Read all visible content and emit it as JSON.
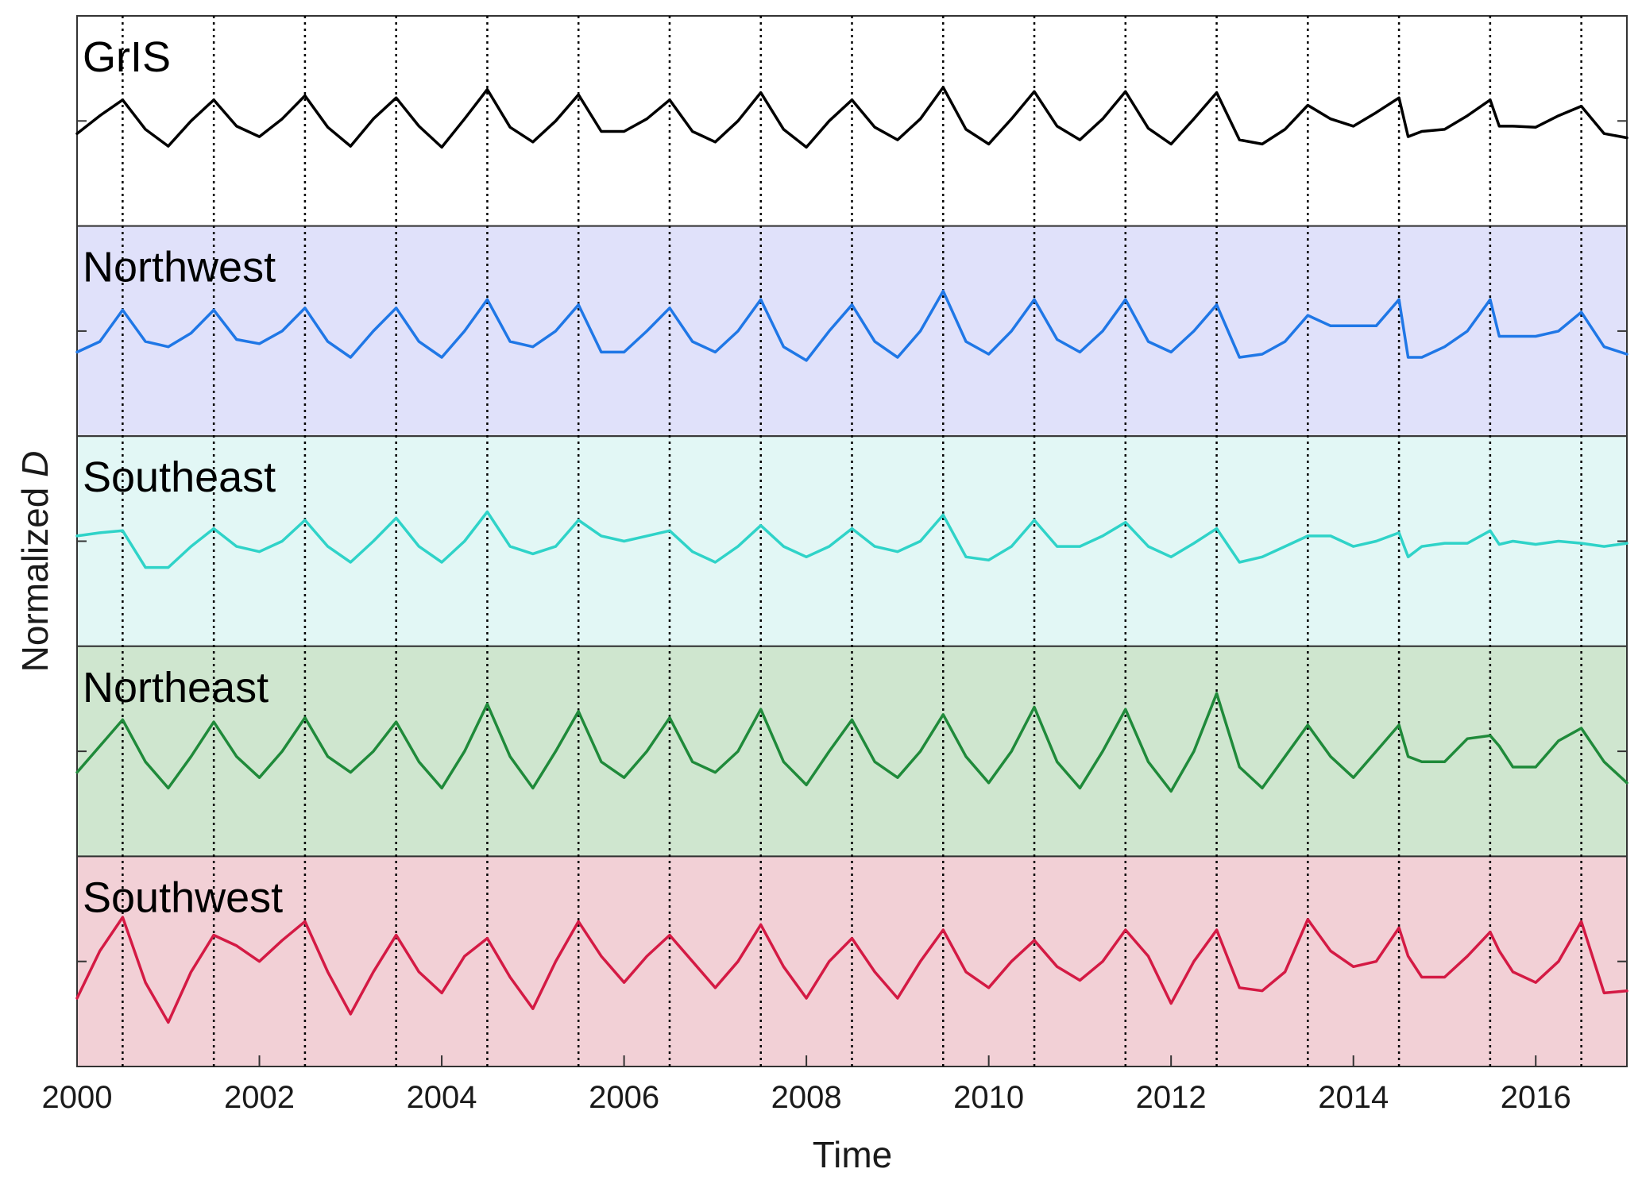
{
  "chart_data": {
    "type": "line",
    "xlabel": "Time",
    "ylabel": "Normalized D",
    "ylabel_parts": {
      "text": "Normalized ",
      "var": "D"
    },
    "xlim": [
      2000,
      2017
    ],
    "xticks": [
      2000,
      2002,
      2004,
      2006,
      2008,
      2010,
      2012,
      2014,
      2016
    ],
    "vlines": [
      2000.5,
      2001.5,
      2002.5,
      2003.5,
      2004.5,
      2005.5,
      2006.5,
      2007.5,
      2008.5,
      2009.5,
      2010.5,
      2011.5,
      2012.5,
      2013.5,
      2014.5,
      2015.5,
      2016.5
    ],
    "ylim": [
      -1,
      1
    ],
    "grid": false,
    "panels": [
      {
        "label": "GrIS",
        "line_color": "#000000",
        "bg_color": "#ffffff",
        "x": [
          2000.0,
          2000.25,
          2000.5,
          2000.75,
          2001.0,
          2001.25,
          2001.5,
          2001.75,
          2002.0,
          2002.25,
          2002.5,
          2002.75,
          2003.0,
          2003.25,
          2003.5,
          2003.75,
          2004.0,
          2004.25,
          2004.5,
          2004.75,
          2005.0,
          2005.25,
          2005.5,
          2005.75,
          2006.0,
          2006.25,
          2006.5,
          2006.75,
          2007.0,
          2007.25,
          2007.5,
          2007.75,
          2008.0,
          2008.25,
          2008.5,
          2008.75,
          2009.0,
          2009.25,
          2009.5,
          2009.75,
          2010.0,
          2010.25,
          2010.5,
          2010.75,
          2011.0,
          2011.25,
          2011.5,
          2011.75,
          2012.0,
          2012.25,
          2012.5,
          2012.75,
          2013.0,
          2013.25,
          2013.5,
          2013.75,
          2014.0,
          2014.25,
          2014.5,
          2014.6,
          2014.75,
          2015.0,
          2015.25,
          2015.5,
          2015.6,
          2015.75,
          2016.0,
          2016.25,
          2016.5,
          2016.75,
          2017.0
        ],
        "y": [
          -0.12,
          0.05,
          0.2,
          -0.08,
          -0.24,
          0.0,
          0.2,
          -0.05,
          -0.15,
          0.02,
          0.24,
          -0.06,
          -0.24,
          0.02,
          0.22,
          -0.05,
          -0.25,
          0.02,
          0.3,
          -0.06,
          -0.2,
          0.0,
          0.25,
          -0.1,
          -0.1,
          0.02,
          0.2,
          -0.1,
          -0.2,
          0.0,
          0.27,
          -0.08,
          -0.25,
          0.0,
          0.2,
          -0.06,
          -0.18,
          0.02,
          0.32,
          -0.08,
          -0.22,
          0.02,
          0.28,
          -0.05,
          -0.18,
          0.02,
          0.28,
          -0.07,
          -0.22,
          0.02,
          0.27,
          -0.18,
          -0.22,
          -0.08,
          0.15,
          0.02,
          -0.05,
          0.08,
          0.22,
          -0.15,
          -0.1,
          -0.08,
          0.05,
          0.2,
          -0.05,
          -0.05,
          -0.06,
          0.05,
          0.14,
          -0.12,
          -0.16
        ]
      },
      {
        "label": "Northwest",
        "line_color": "#1f77e6",
        "bg_color": "#e0e1fa",
        "x": [
          2000.0,
          2000.25,
          2000.5,
          2000.75,
          2001.0,
          2001.25,
          2001.5,
          2001.75,
          2002.0,
          2002.25,
          2002.5,
          2002.75,
          2003.0,
          2003.25,
          2003.5,
          2003.75,
          2004.0,
          2004.25,
          2004.5,
          2004.75,
          2005.0,
          2005.25,
          2005.5,
          2005.75,
          2006.0,
          2006.25,
          2006.5,
          2006.75,
          2007.0,
          2007.25,
          2007.5,
          2007.75,
          2008.0,
          2008.25,
          2008.5,
          2008.75,
          2009.0,
          2009.25,
          2009.5,
          2009.75,
          2010.0,
          2010.25,
          2010.5,
          2010.75,
          2011.0,
          2011.25,
          2011.5,
          2011.75,
          2012.0,
          2012.25,
          2012.5,
          2012.75,
          2013.0,
          2013.25,
          2013.5,
          2013.75,
          2014.0,
          2014.25,
          2014.5,
          2014.6,
          2014.75,
          2015.0,
          2015.25,
          2015.5,
          2015.6,
          2015.75,
          2016.0,
          2016.25,
          2016.5,
          2016.75,
          2017.0
        ],
        "y": [
          -0.2,
          -0.1,
          0.2,
          -0.1,
          -0.15,
          -0.02,
          0.2,
          -0.08,
          -0.12,
          0.0,
          0.22,
          -0.1,
          -0.25,
          0.0,
          0.22,
          -0.1,
          -0.25,
          0.0,
          0.3,
          -0.1,
          -0.15,
          0.0,
          0.25,
          -0.2,
          -0.2,
          0.0,
          0.22,
          -0.1,
          -0.2,
          0.0,
          0.3,
          -0.15,
          -0.28,
          0.0,
          0.25,
          -0.1,
          -0.25,
          0.0,
          0.38,
          -0.1,
          -0.22,
          0.0,
          0.3,
          -0.08,
          -0.2,
          0.0,
          0.3,
          -0.1,
          -0.2,
          0.0,
          0.25,
          -0.25,
          -0.22,
          -0.1,
          0.15,
          0.05,
          0.05,
          0.05,
          0.3,
          -0.25,
          -0.25,
          -0.15,
          0.0,
          0.3,
          -0.05,
          -0.05,
          -0.05,
          0.0,
          0.18,
          -0.15,
          -0.22
        ]
      },
      {
        "label": "Southeast",
        "line_color": "#2fd3c8",
        "bg_color": "#e2f7f5",
        "x": [
          2000.0,
          2000.25,
          2000.5,
          2000.75,
          2001.0,
          2001.25,
          2001.5,
          2001.75,
          2002.0,
          2002.25,
          2002.5,
          2002.75,
          2003.0,
          2003.25,
          2003.5,
          2003.75,
          2004.0,
          2004.25,
          2004.5,
          2004.75,
          2005.0,
          2005.25,
          2005.5,
          2005.75,
          2006.0,
          2006.25,
          2006.5,
          2006.75,
          2007.0,
          2007.25,
          2007.5,
          2007.75,
          2008.0,
          2008.25,
          2008.5,
          2008.75,
          2009.0,
          2009.25,
          2009.5,
          2009.75,
          2010.0,
          2010.25,
          2010.5,
          2010.75,
          2011.0,
          2011.25,
          2011.5,
          2011.75,
          2012.0,
          2012.25,
          2012.5,
          2012.75,
          2013.0,
          2013.25,
          2013.5,
          2013.75,
          2014.0,
          2014.25,
          2014.5,
          2014.6,
          2014.75,
          2015.0,
          2015.25,
          2015.5,
          2015.6,
          2015.75,
          2016.0,
          2016.25,
          2016.5,
          2016.75,
          2017.0
        ],
        "y": [
          0.05,
          0.08,
          0.1,
          -0.25,
          -0.25,
          -0.05,
          0.12,
          -0.05,
          -0.1,
          0.0,
          0.2,
          -0.05,
          -0.2,
          0.0,
          0.22,
          -0.05,
          -0.2,
          0.0,
          0.28,
          -0.05,
          -0.12,
          -0.05,
          0.2,
          0.05,
          0.0,
          0.05,
          0.1,
          -0.1,
          -0.2,
          -0.05,
          0.15,
          -0.05,
          -0.15,
          -0.05,
          0.12,
          -0.05,
          -0.1,
          0.0,
          0.25,
          -0.15,
          -0.18,
          -0.05,
          0.2,
          -0.05,
          -0.05,
          0.05,
          0.18,
          -0.05,
          -0.15,
          -0.02,
          0.12,
          -0.2,
          -0.15,
          -0.05,
          0.05,
          0.05,
          -0.05,
          0.0,
          0.08,
          -0.15,
          -0.05,
          -0.02,
          -0.02,
          0.1,
          -0.03,
          0.0,
          -0.03,
          0.0,
          -0.02,
          -0.05,
          -0.02
        ]
      },
      {
        "label": "Northeast",
        "line_color": "#1f8a3a",
        "bg_color": "#cfe6cf",
        "x": [
          2000.0,
          2000.25,
          2000.5,
          2000.75,
          2001.0,
          2001.25,
          2001.5,
          2001.75,
          2002.0,
          2002.25,
          2002.5,
          2002.75,
          2003.0,
          2003.25,
          2003.5,
          2003.75,
          2004.0,
          2004.25,
          2004.5,
          2004.75,
          2005.0,
          2005.25,
          2005.5,
          2005.75,
          2006.0,
          2006.25,
          2006.5,
          2006.75,
          2007.0,
          2007.25,
          2007.5,
          2007.75,
          2008.0,
          2008.25,
          2008.5,
          2008.75,
          2009.0,
          2009.25,
          2009.5,
          2009.75,
          2010.0,
          2010.25,
          2010.5,
          2010.75,
          2011.0,
          2011.25,
          2011.5,
          2011.75,
          2012.0,
          2012.25,
          2012.5,
          2012.75,
          2013.0,
          2013.25,
          2013.5,
          2013.75,
          2014.0,
          2014.25,
          2014.5,
          2014.6,
          2014.75,
          2015.0,
          2015.25,
          2015.5,
          2015.6,
          2015.75,
          2016.0,
          2016.25,
          2016.5,
          2016.75,
          2017.0
        ],
        "y": [
          -0.2,
          0.05,
          0.3,
          -0.1,
          -0.35,
          -0.05,
          0.28,
          -0.05,
          -0.25,
          0.0,
          0.32,
          -0.05,
          -0.2,
          0.0,
          0.28,
          -0.1,
          -0.35,
          0.0,
          0.45,
          -0.05,
          -0.35,
          0.0,
          0.38,
          -0.1,
          -0.25,
          0.0,
          0.32,
          -0.1,
          -0.2,
          0.0,
          0.4,
          -0.1,
          -0.32,
          0.0,
          0.3,
          -0.1,
          -0.25,
          0.0,
          0.35,
          -0.05,
          -0.3,
          0.0,
          0.42,
          -0.1,
          -0.35,
          0.0,
          0.4,
          -0.1,
          -0.38,
          0.0,
          0.55,
          -0.15,
          -0.35,
          -0.05,
          0.25,
          -0.05,
          -0.25,
          0.0,
          0.25,
          -0.05,
          -0.1,
          -0.1,
          0.12,
          0.15,
          0.05,
          -0.15,
          -0.15,
          0.1,
          0.22,
          -0.1,
          -0.3
        ]
      },
      {
        "label": "Southwest",
        "line_color": "#d41a44",
        "bg_color": "#f2d0d6",
        "x": [
          2000.0,
          2000.25,
          2000.5,
          2000.75,
          2001.0,
          2001.25,
          2001.5,
          2001.75,
          2002.0,
          2002.25,
          2002.5,
          2002.75,
          2003.0,
          2003.25,
          2003.5,
          2003.75,
          2004.0,
          2004.25,
          2004.5,
          2004.75,
          2005.0,
          2005.25,
          2005.5,
          2005.75,
          2006.0,
          2006.25,
          2006.5,
          2006.75,
          2007.0,
          2007.25,
          2007.5,
          2007.75,
          2008.0,
          2008.25,
          2008.5,
          2008.75,
          2009.0,
          2009.25,
          2009.5,
          2009.75,
          2010.0,
          2010.25,
          2010.5,
          2010.75,
          2011.0,
          2011.25,
          2011.5,
          2011.75,
          2012.0,
          2012.25,
          2012.5,
          2012.75,
          2013.0,
          2013.25,
          2013.5,
          2013.75,
          2014.0,
          2014.25,
          2014.5,
          2014.6,
          2014.75,
          2015.0,
          2015.25,
          2015.5,
          2015.6,
          2015.75,
          2016.0,
          2016.25,
          2016.5,
          2016.75,
          2017.0
        ],
        "y": [
          -0.35,
          0.1,
          0.42,
          -0.2,
          -0.58,
          -0.1,
          0.25,
          0.15,
          0.0,
          0.2,
          0.38,
          -0.1,
          -0.5,
          -0.1,
          0.25,
          -0.1,
          -0.3,
          0.05,
          0.22,
          -0.15,
          -0.45,
          0.0,
          0.38,
          0.05,
          -0.2,
          0.05,
          0.25,
          0.0,
          -0.25,
          0.0,
          0.35,
          -0.05,
          -0.35,
          0.0,
          0.22,
          -0.1,
          -0.35,
          0.0,
          0.3,
          -0.1,
          -0.25,
          0.0,
          0.2,
          -0.05,
          -0.18,
          0.0,
          0.3,
          0.05,
          -0.4,
          0.0,
          0.3,
          -0.25,
          -0.28,
          -0.1,
          0.4,
          0.1,
          -0.05,
          0.0,
          0.32,
          0.05,
          -0.15,
          -0.15,
          0.05,
          0.28,
          0.1,
          -0.1,
          -0.2,
          0.0,
          0.38,
          -0.3,
          -0.28
        ]
      }
    ]
  }
}
